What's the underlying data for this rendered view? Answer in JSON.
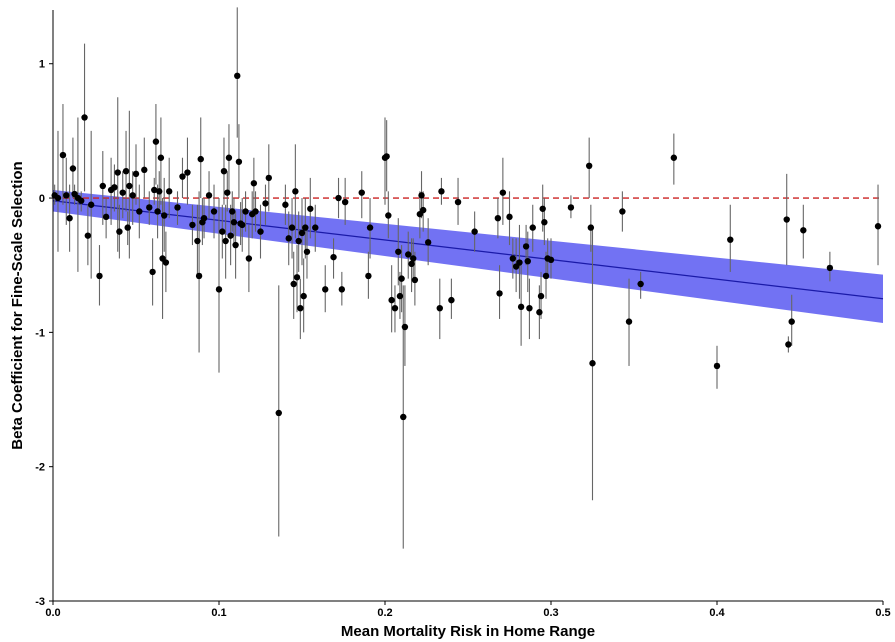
{
  "chart_data": {
    "type": "scatter",
    "title": "",
    "xlabel": "Mean Mortality Risk in Home Range",
    "ylabel": "Beta Coefficient for Fine-Scale Selection",
    "xlim": [
      0,
      0.5
    ],
    "ylim": [
      -3,
      1.4
    ],
    "x_ticks": [
      0.0,
      0.1,
      0.2,
      0.3,
      0.4,
      0.5
    ],
    "x_tick_labels": [
      "0.0",
      "0.1",
      "0.2",
      "0.3",
      "0.4",
      "0.5"
    ],
    "y_ticks": [
      -3,
      -2,
      -1,
      0,
      1
    ],
    "y_tick_labels": [
      "-3",
      "-2",
      "-1",
      "0",
      "1"
    ],
    "grid": false,
    "legend": "none",
    "reference_line": {
      "y": 0,
      "style": "dashed",
      "color": "#cc2222"
    },
    "regression": {
      "x": [
        0,
        0.5
      ],
      "y": [
        -0.02,
        -0.75
      ],
      "ci_lower": [
        -0.1,
        -0.93
      ],
      "ci_upper": [
        0.06,
        -0.57
      ],
      "line_color": "#1a1aa8",
      "band_color": "#6a6af2"
    },
    "colors": {
      "points": "#000000",
      "errorbars": "#666666"
    },
    "points": [
      {
        "x": 0.001,
        "y": 0.02,
        "lo": -0.05,
        "hi": 0.1
      },
      {
        "x": 0.003,
        "y": 0.0,
        "lo": -0.4,
        "hi": 0.5
      },
      {
        "x": 0.006,
        "y": 0.32,
        "lo": -0.05,
        "hi": 0.7
      },
      {
        "x": 0.008,
        "y": 0.02,
        "lo": -0.2,
        "hi": 0.3
      },
      {
        "x": 0.01,
        "y": -0.15,
        "lo": -0.4,
        "hi": 0.1
      },
      {
        "x": 0.012,
        "y": 0.22,
        "lo": 0.0,
        "hi": 0.45
      },
      {
        "x": 0.013,
        "y": 0.03,
        "lo": -0.05,
        "hi": 0.1
      },
      {
        "x": 0.015,
        "y": 0.0,
        "lo": -0.55,
        "hi": 0.6
      },
      {
        "x": 0.017,
        "y": -0.02,
        "lo": -0.1,
        "hi": 0.05
      },
      {
        "x": 0.019,
        "y": 0.6,
        "lo": 0.05,
        "hi": 1.15
      },
      {
        "x": 0.021,
        "y": -0.28,
        "lo": -0.5,
        "hi": -0.05
      },
      {
        "x": 0.023,
        "y": -0.05,
        "lo": -0.6,
        "hi": 0.5
      },
      {
        "x": 0.028,
        "y": -0.58,
        "lo": -0.8,
        "hi": -0.35
      },
      {
        "x": 0.03,
        "y": 0.09,
        "lo": -0.2,
        "hi": 0.35
      },
      {
        "x": 0.032,
        "y": -0.14,
        "lo": -0.3,
        "hi": 0.0
      },
      {
        "x": 0.035,
        "y": 0.06,
        "lo": -0.2,
        "hi": 0.3
      },
      {
        "x": 0.037,
        "y": 0.08,
        "lo": -0.1,
        "hi": 0.25
      },
      {
        "x": 0.039,
        "y": 0.19,
        "lo": -0.4,
        "hi": 0.75
      },
      {
        "x": 0.04,
        "y": -0.25,
        "lo": -0.45,
        "hi": -0.05
      },
      {
        "x": 0.042,
        "y": 0.04,
        "lo": -0.15,
        "hi": 0.2
      },
      {
        "x": 0.044,
        "y": 0.2,
        "lo": -0.1,
        "hi": 0.5
      },
      {
        "x": 0.045,
        "y": -0.22,
        "lo": -0.35,
        "hi": -0.1
      },
      {
        "x": 0.046,
        "y": 0.09,
        "lo": -0.45,
        "hi": 0.65
      },
      {
        "x": 0.048,
        "y": 0.02,
        "lo": -0.2,
        "hi": 0.2
      },
      {
        "x": 0.05,
        "y": 0.18,
        "lo": -0.05,
        "hi": 0.4
      },
      {
        "x": 0.052,
        "y": -0.1,
        "lo": -0.3,
        "hi": 0.1
      },
      {
        "x": 0.055,
        "y": 0.21,
        "lo": 0.0,
        "hi": 0.45
      },
      {
        "x": 0.058,
        "y": -0.07,
        "lo": -0.2,
        "hi": 0.05
      },
      {
        "x": 0.06,
        "y": -0.55,
        "lo": -0.8,
        "hi": -0.3
      },
      {
        "x": 0.061,
        "y": 0.06,
        "lo": -0.05,
        "hi": 0.15
      },
      {
        "x": 0.062,
        "y": 0.42,
        "lo": 0.1,
        "hi": 0.7
      },
      {
        "x": 0.063,
        "y": -0.1,
        "lo": -0.3,
        "hi": 0.1
      },
      {
        "x": 0.064,
        "y": 0.05,
        "lo": -0.1,
        "hi": 0.2
      },
      {
        "x": 0.065,
        "y": 0.3,
        "lo": -0.05,
        "hi": 0.6
      },
      {
        "x": 0.066,
        "y": -0.45,
        "lo": -0.9,
        "hi": 0.0
      },
      {
        "x": 0.067,
        "y": -0.13,
        "lo": -0.4,
        "hi": 0.15
      },
      {
        "x": 0.068,
        "y": -0.48,
        "lo": -0.7,
        "hi": -0.25
      },
      {
        "x": 0.07,
        "y": 0.05,
        "lo": -0.15,
        "hi": 0.3
      },
      {
        "x": 0.075,
        "y": -0.07,
        "lo": -0.2,
        "hi": 0.05
      },
      {
        "x": 0.078,
        "y": 0.16,
        "lo": 0.0,
        "hi": 0.3
      },
      {
        "x": 0.081,
        "y": 0.19,
        "lo": -0.05,
        "hi": 0.45
      },
      {
        "x": 0.084,
        "y": -0.2,
        "lo": -0.35,
        "hi": -0.05
      },
      {
        "x": 0.087,
        "y": -0.32,
        "lo": -0.6,
        "hi": -0.05
      },
      {
        "x": 0.088,
        "y": -0.58,
        "lo": -1.15,
        "hi": 0.05
      },
      {
        "x": 0.089,
        "y": 0.29,
        "lo": 0.0,
        "hi": 0.6
      },
      {
        "x": 0.09,
        "y": -0.18,
        "lo": -0.35,
        "hi": 0.0
      },
      {
        "x": 0.091,
        "y": -0.15,
        "lo": -0.3,
        "hi": 0.0
      },
      {
        "x": 0.094,
        "y": 0.02,
        "lo": -0.15,
        "hi": 0.2
      },
      {
        "x": 0.097,
        "y": -0.1,
        "lo": -0.3,
        "hi": 0.1
      },
      {
        "x": 0.1,
        "y": -0.68,
        "lo": -1.3,
        "hi": 0.0
      },
      {
        "x": 0.102,
        "y": -0.25,
        "lo": -0.45,
        "hi": -0.05
      },
      {
        "x": 0.103,
        "y": 0.2,
        "lo": -0.05,
        "hi": 0.45
      },
      {
        "x": 0.104,
        "y": -0.32,
        "lo": -0.6,
        "hi": -0.05
      },
      {
        "x": 0.105,
        "y": 0.04,
        "lo": -0.1,
        "hi": 0.2
      },
      {
        "x": 0.106,
        "y": 0.3,
        "lo": 0.05,
        "hi": 0.55
      },
      {
        "x": 0.107,
        "y": -0.28,
        "lo": -0.5,
        "hi": -0.05
      },
      {
        "x": 0.108,
        "y": -0.1,
        "lo": -0.25,
        "hi": 0.05
      },
      {
        "x": 0.109,
        "y": -0.18,
        "lo": -0.35,
        "hi": 0.0
      },
      {
        "x": 0.11,
        "y": -0.35,
        "lo": -0.6,
        "hi": -0.1
      },
      {
        "x": 0.111,
        "y": 0.91,
        "lo": 0.45,
        "hi": 1.42
      },
      {
        "x": 0.112,
        "y": 0.27,
        "lo": 0.0,
        "hi": 0.55
      },
      {
        "x": 0.113,
        "y": -0.19,
        "lo": -0.35,
        "hi": -0.03
      },
      {
        "x": 0.114,
        "y": -0.2,
        "lo": -0.4,
        "hi": 0.0
      },
      {
        "x": 0.116,
        "y": -0.1,
        "lo": -0.25,
        "hi": 0.05
      },
      {
        "x": 0.118,
        "y": -0.45,
        "lo": -0.7,
        "hi": -0.2
      },
      {
        "x": 0.12,
        "y": -0.12,
        "lo": -0.3,
        "hi": 0.05
      },
      {
        "x": 0.121,
        "y": 0.11,
        "lo": -0.1,
        "hi": 0.3
      },
      {
        "x": 0.122,
        "y": -0.1,
        "lo": -0.25,
        "hi": 0.05
      },
      {
        "x": 0.125,
        "y": -0.25,
        "lo": -0.45,
        "hi": -0.05
      },
      {
        "x": 0.128,
        "y": -0.04,
        "lo": -0.2,
        "hi": 0.1
      },
      {
        "x": 0.13,
        "y": 0.15,
        "lo": -0.1,
        "hi": 0.4
      },
      {
        "x": 0.136,
        "y": -1.6,
        "lo": -2.52,
        "hi": -0.65
      },
      {
        "x": 0.14,
        "y": -0.05,
        "lo": -0.2,
        "hi": 0.1
      },
      {
        "x": 0.142,
        "y": -0.3,
        "lo": -0.5,
        "hi": -0.1
      },
      {
        "x": 0.144,
        "y": -0.22,
        "lo": -0.45,
        "hi": 0.0
      },
      {
        "x": 0.145,
        "y": -0.64,
        "lo": -0.9,
        "hi": -0.4
      },
      {
        "x": 0.146,
        "y": 0.05,
        "lo": -0.3,
        "hi": 0.4
      },
      {
        "x": 0.147,
        "y": -0.59,
        "lo": -0.85,
        "hi": -0.35
      },
      {
        "x": 0.148,
        "y": -0.32,
        "lo": -0.55,
        "hi": -0.1
      },
      {
        "x": 0.149,
        "y": -0.82,
        "lo": -1.05,
        "hi": -0.6
      },
      {
        "x": 0.15,
        "y": -0.26,
        "lo": -0.5,
        "hi": 0.0
      },
      {
        "x": 0.151,
        "y": -0.73,
        "lo": -1.0,
        "hi": -0.45
      },
      {
        "x": 0.152,
        "y": -0.22,
        "lo": -0.45,
        "hi": 0.0
      },
      {
        "x": 0.153,
        "y": -0.4,
        "lo": -0.6,
        "hi": -0.2
      },
      {
        "x": 0.155,
        "y": -0.08,
        "lo": -0.3,
        "hi": 0.15
      },
      {
        "x": 0.158,
        "y": -0.22,
        "lo": -0.4,
        "hi": -0.05
      },
      {
        "x": 0.164,
        "y": -0.68,
        "lo": -0.85,
        "hi": -0.5
      },
      {
        "x": 0.169,
        "y": -0.44,
        "lo": -0.6,
        "hi": -0.3
      },
      {
        "x": 0.172,
        "y": 0.0,
        "lo": -0.15,
        "hi": 0.15
      },
      {
        "x": 0.174,
        "y": -0.68,
        "lo": -0.8,
        "hi": -0.55
      },
      {
        "x": 0.176,
        "y": -0.03,
        "lo": -0.2,
        "hi": 0.15
      },
      {
        "x": 0.186,
        "y": 0.04,
        "lo": -0.15,
        "hi": 0.2
      },
      {
        "x": 0.19,
        "y": -0.58,
        "lo": -0.75,
        "hi": -0.4
      },
      {
        "x": 0.191,
        "y": -0.22,
        "lo": -0.45,
        "hi": 0.0
      },
      {
        "x": 0.2,
        "y": 0.3,
        "lo": -0.05,
        "hi": 0.6
      },
      {
        "x": 0.201,
        "y": 0.31,
        "lo": 0.05,
        "hi": 0.58
      },
      {
        "x": 0.202,
        "y": -0.13,
        "lo": -0.3,
        "hi": 0.05
      },
      {
        "x": 0.204,
        "y": -0.76,
        "lo": -1.0,
        "hi": -0.5
      },
      {
        "x": 0.206,
        "y": -0.82,
        "lo": -1.0,
        "hi": -0.65
      },
      {
        "x": 0.208,
        "y": -0.4,
        "lo": -0.65,
        "hi": -0.15
      },
      {
        "x": 0.209,
        "y": -0.73,
        "lo": -0.9,
        "hi": -0.55
      },
      {
        "x": 0.21,
        "y": -0.6,
        "lo": -0.85,
        "hi": -0.35
      },
      {
        "x": 0.211,
        "y": -1.63,
        "lo": -2.61,
        "hi": -0.65
      },
      {
        "x": 0.212,
        "y": -0.96,
        "lo": -1.25,
        "hi": -0.65
      },
      {
        "x": 0.214,
        "y": -0.42,
        "lo": -0.6,
        "hi": -0.25
      },
      {
        "x": 0.216,
        "y": -0.49,
        "lo": -0.7,
        "hi": -0.3
      },
      {
        "x": 0.217,
        "y": -0.45,
        "lo": -0.6,
        "hi": -0.3
      },
      {
        "x": 0.218,
        "y": -0.61,
        "lo": -0.8,
        "hi": -0.4
      },
      {
        "x": 0.221,
        "y": -0.12,
        "lo": -0.3,
        "hi": 0.05
      },
      {
        "x": 0.222,
        "y": 0.02,
        "lo": -0.15,
        "hi": 0.2
      },
      {
        "x": 0.223,
        "y": -0.09,
        "lo": -0.25,
        "hi": 0.05
      },
      {
        "x": 0.226,
        "y": -0.33,
        "lo": -0.5,
        "hi": -0.15
      },
      {
        "x": 0.233,
        "y": -0.82,
        "lo": -1.05,
        "hi": -0.6
      },
      {
        "x": 0.234,
        "y": 0.05,
        "lo": -0.05,
        "hi": 0.15
      },
      {
        "x": 0.24,
        "y": -0.76,
        "lo": -0.9,
        "hi": -0.6
      },
      {
        "x": 0.244,
        "y": -0.03,
        "lo": -0.2,
        "hi": 0.15
      },
      {
        "x": 0.254,
        "y": -0.25,
        "lo": -0.4,
        "hi": -0.1
      },
      {
        "x": 0.268,
        "y": -0.15,
        "lo": -0.3,
        "hi": 0.0
      },
      {
        "x": 0.269,
        "y": -0.71,
        "lo": -0.9,
        "hi": -0.5
      },
      {
        "x": 0.271,
        "y": 0.04,
        "lo": -0.2,
        "hi": 0.3
      },
      {
        "x": 0.275,
        "y": -0.14,
        "lo": -0.35,
        "hi": 0.05
      },
      {
        "x": 0.277,
        "y": -0.45,
        "lo": -0.6,
        "hi": -0.3
      },
      {
        "x": 0.279,
        "y": -0.51,
        "lo": -0.7,
        "hi": -0.3
      },
      {
        "x": 0.281,
        "y": -0.48,
        "lo": -0.75,
        "hi": -0.2
      },
      {
        "x": 0.282,
        "y": -0.81,
        "lo": -1.1,
        "hi": -0.5
      },
      {
        "x": 0.285,
        "y": -0.36,
        "lo": -0.5,
        "hi": -0.2
      },
      {
        "x": 0.286,
        "y": -0.47,
        "lo": -0.7,
        "hi": -0.25
      },
      {
        "x": 0.287,
        "y": -0.82,
        "lo": -1.05,
        "hi": -0.6
      },
      {
        "x": 0.289,
        "y": -0.22,
        "lo": -0.4,
        "hi": -0.05
      },
      {
        "x": 0.293,
        "y": -0.85,
        "lo": -1.05,
        "hi": -0.65
      },
      {
        "x": 0.294,
        "y": -0.73,
        "lo": -0.9,
        "hi": -0.55
      },
      {
        "x": 0.295,
        "y": -0.08,
        "lo": -0.25,
        "hi": 0.1
      },
      {
        "x": 0.296,
        "y": -0.18,
        "lo": -0.35,
        "hi": 0.0
      },
      {
        "x": 0.297,
        "y": -0.58,
        "lo": -0.75,
        "hi": -0.4
      },
      {
        "x": 0.298,
        "y": -0.45,
        "lo": -0.6,
        "hi": -0.3
      },
      {
        "x": 0.3,
        "y": -0.46,
        "lo": -0.6,
        "hi": -0.3
      },
      {
        "x": 0.312,
        "y": -0.07,
        "lo": -0.15,
        "hi": 0.02
      },
      {
        "x": 0.323,
        "y": 0.24,
        "lo": 0.0,
        "hi": 0.45
      },
      {
        "x": 0.324,
        "y": -0.22,
        "lo": -0.4,
        "hi": -0.05
      },
      {
        "x": 0.325,
        "y": -1.23,
        "lo": -2.25,
        "hi": -0.2
      },
      {
        "x": 0.343,
        "y": -0.1,
        "lo": -0.25,
        "hi": 0.05
      },
      {
        "x": 0.347,
        "y": -0.92,
        "lo": -1.25,
        "hi": -0.6
      },
      {
        "x": 0.354,
        "y": -0.64,
        "lo": -0.75,
        "hi": -0.55
      },
      {
        "x": 0.374,
        "y": 0.3,
        "lo": 0.1,
        "hi": 0.48
      },
      {
        "x": 0.4,
        "y": -1.25,
        "lo": -1.42,
        "hi": -1.1
      },
      {
        "x": 0.408,
        "y": -0.31,
        "lo": -0.55,
        "hi": -0.05
      },
      {
        "x": 0.442,
        "y": -0.16,
        "lo": -0.5,
        "hi": 0.18
      },
      {
        "x": 0.443,
        "y": -1.09,
        "lo": -1.15,
        "hi": -1.03
      },
      {
        "x": 0.445,
        "y": -0.92,
        "lo": -1.1,
        "hi": -0.72
      },
      {
        "x": 0.452,
        "y": -0.24,
        "lo": -0.45,
        "hi": -0.05
      },
      {
        "x": 0.468,
        "y": -0.52,
        "lo": -0.62,
        "hi": -0.4
      },
      {
        "x": 0.497,
        "y": -0.21,
        "lo": -0.5,
        "hi": 0.1
      }
    ]
  }
}
